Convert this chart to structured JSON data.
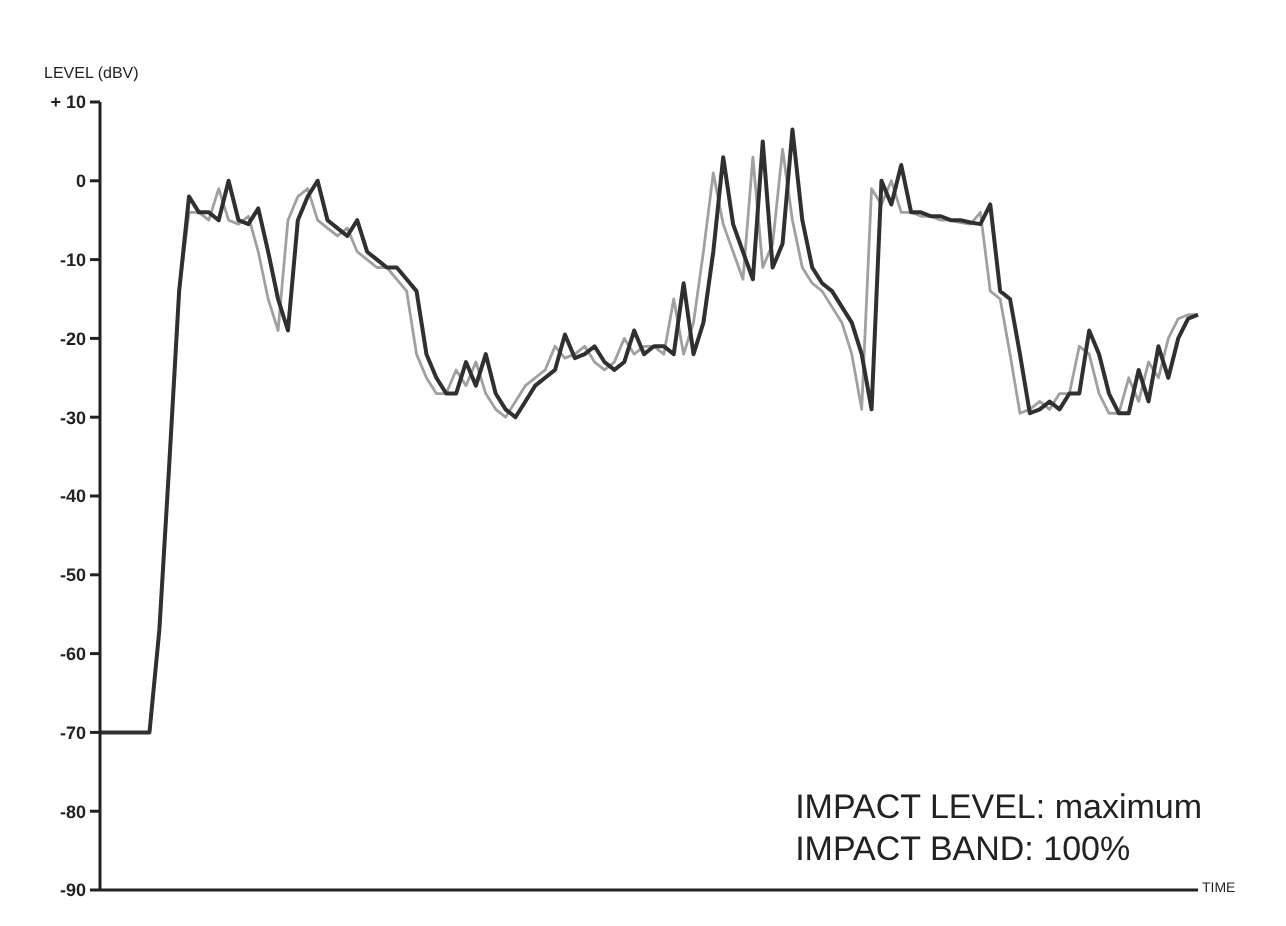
{
  "chart_data": {
    "type": "line",
    "ylabel": "LEVEL (dBV)",
    "xlabel": "TIME",
    "annotations": [
      "IMPACT LEVEL: maximum",
      "IMPACT BAND: 100%"
    ],
    "categories": [
      null,
      null,
      null,
      null,
      null,
      null,
      null,
      null,
      null,
      null,
      null,
      null,
      null,
      null,
      null,
      null,
      null,
      null,
      null,
      null,
      null,
      null,
      null,
      null,
      null,
      null,
      null,
      null,
      null,
      null,
      null,
      null,
      null,
      null,
      null,
      null,
      null,
      null,
      null,
      null,
      null,
      null,
      null,
      null,
      null,
      null,
      null,
      null,
      null,
      null,
      null,
      null,
      null,
      null,
      null,
      null,
      null,
      null,
      null,
      null,
      null,
      null,
      null,
      null,
      null,
      null,
      null,
      null,
      null,
      null,
      null,
      null,
      null,
      null,
      null,
      null,
      null,
      null,
      null,
      null,
      null,
      null,
      null,
      null,
      null,
      null,
      null,
      null,
      null,
      null,
      null,
      null,
      null,
      null,
      null,
      null,
      null,
      null,
      null,
      null,
      null,
      null,
      null,
      null,
      null,
      null,
      null,
      null,
      null,
      null,
      null,
      null
    ],
    "series": [
      {
        "color": "#a0a0a0",
        "values": [
          -70,
          -70,
          -70,
          -70,
          -70,
          -70,
          -57,
          -36,
          -14,
          -4,
          -4,
          -5,
          -1,
          -5,
          -5.5,
          -4.5,
          -9,
          -15,
          -19,
          -5,
          -2,
          -1,
          -5,
          -6,
          -7,
          -6,
          -9,
          -10,
          -11,
          -11,
          -12.5,
          -14,
          -22,
          -25,
          -27,
          -27,
          -24,
          -26,
          -23,
          -27,
          -29,
          -30,
          -28,
          -26,
          -25,
          -24,
          -21,
          -22.5,
          -22,
          -21,
          -23,
          -24,
          -23,
          -20,
          -22,
          -21,
          -21,
          -22,
          -15,
          -22,
          -18,
          -9,
          1,
          -5.5,
          -9,
          -12.5,
          3,
          -11,
          -8,
          4,
          -5,
          -11,
          -13,
          -14,
          -16,
          -18,
          -22,
          -29,
          -1,
          -3,
          0,
          -4,
          -4,
          -4.5,
          -4.5,
          -5,
          -5,
          -5.3,
          -5.5,
          -4,
          -14,
          -15,
          -22,
          -29.5,
          -29,
          -28,
          -29,
          -27,
          -27,
          -21,
          -22,
          -27,
          -29.5,
          -29.5,
          -25,
          -28,
          -23,
          -25,
          -20,
          -17.5,
          -17,
          -17
        ]
      },
      {
        "color": "#303030",
        "values": [
          -70,
          -70,
          -70,
          -70,
          -70,
          -70,
          -57,
          -36,
          -14,
          -2,
          -4,
          -4,
          -5,
          0,
          -5,
          -5.5,
          -3.5,
          -9,
          -15,
          -19,
          -5,
          -2,
          0,
          -5,
          -6,
          -7,
          -5,
          -9,
          -10,
          -11,
          -11,
          -12.5,
          -14,
          -22,
          -25,
          -27,
          -27,
          -23,
          -26,
          -22,
          -27,
          -29,
          -30,
          -28,
          -26,
          -25,
          -24,
          -19.5,
          -22.5,
          -22,
          -21,
          -23,
          -24,
          -23,
          -19,
          -22,
          -21,
          -21,
          -22,
          -13,
          -22,
          -18,
          -9,
          3,
          -5.5,
          -9,
          -12.5,
          5,
          -11,
          -8,
          6.5,
          -5,
          -11,
          -13,
          -14,
          -16,
          -18,
          -22,
          -29,
          0,
          -3,
          2,
          -4,
          -4,
          -4.5,
          -4.5,
          -5,
          -5,
          -5.3,
          -5.5,
          -3,
          -14,
          -15,
          -22,
          -29.5,
          -29,
          -28,
          -29,
          -27,
          -27,
          -19,
          -22,
          -27,
          -29.5,
          -29.5,
          -24,
          -28,
          -21,
          -25,
          -20,
          -17.5,
          -17
        ]
      }
    ],
    "ylim": [
      -90,
      10
    ],
    "yticks": [
      {
        "value": 10,
        "label": "+ 10"
      },
      0,
      -10,
      -20,
      -30,
      -40,
      -50,
      -60,
      -70,
      -80,
      -90
    ],
    "tick_labels": "y"
  }
}
